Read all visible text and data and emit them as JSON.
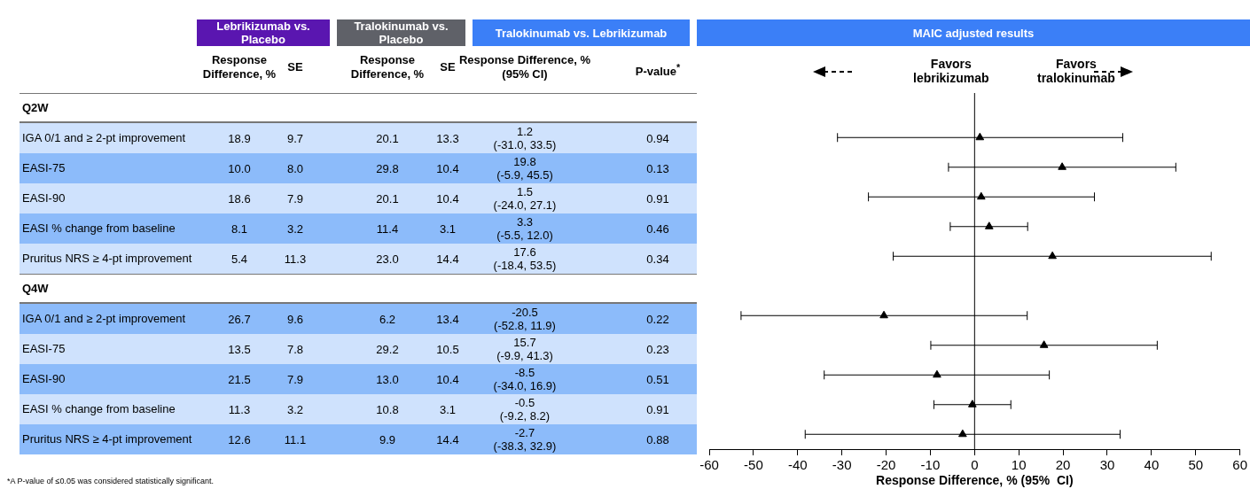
{
  "chart_data": [
    {
      "type": "other",
      "categories": [
        "Q2W",
        "IGA 0/1 and ≥ 2-pt improvement",
        "EASI-75",
        "EASI-90",
        "EASI % change from baseline",
        "Pruritus NRS ≥ 4-pt improvement",
        "Q4W",
        "IGA 0/1 and ≥ 2-pt improvement",
        "EASI-75",
        "EASI-90",
        "EASI % change from baseline",
        "Pruritus NRS ≥ 4-pt improvement"
      ],
      "annotations": [
        "Lebrikizumab vs. Placebo",
        "Tralokinumab vs. Placebo",
        "Tralokinumab vs. Lebrikizumab",
        "*A P-value of ≤0.05 was considered statistically significant."
      ],
      "data_labels": true,
      "series": [
        {
          "name": "Response Difference, %",
          "color": "#000000",
          "values": [
            null,
            18.9,
            10.0,
            18.6,
            8.1,
            5.4,
            null,
            26.7,
            13.5,
            21.5,
            11.3,
            12.6
          ],
          "value_labels": [
            null,
            "18.9",
            "10.0",
            "18.6",
            "8.1",
            "5.4",
            null,
            "26.7",
            "13.5",
            "21.5",
            "11.3",
            "12.6"
          ]
        },
        {
          "name": "SE",
          "color": "#000000",
          "values": [
            null,
            9.7,
            8.0,
            7.9,
            3.2,
            11.3,
            null,
            9.6,
            7.8,
            7.9,
            3.2,
            11.1
          ],
          "value_labels": [
            null,
            "9.7",
            "8.0",
            "7.9",
            "3.2",
            "11.3",
            null,
            "9.6",
            "7.8",
            "7.9",
            "3.2",
            "11.1"
          ]
        },
        {
          "name": "Response Difference, %",
          "color": "#000000",
          "values": [
            null,
            20.1,
            29.8,
            20.1,
            11.4,
            23.0,
            null,
            6.2,
            29.2,
            13.0,
            10.8,
            9.9
          ],
          "value_labels": [
            null,
            "20.1",
            "29.8",
            "20.1",
            "11.4",
            "23.0",
            null,
            "6.2",
            "29.2",
            "13.0",
            "10.8",
            "9.9"
          ]
        },
        {
          "name": "SE",
          "color": "#000000",
          "values": [
            null,
            13.3,
            10.4,
            10.4,
            3.1,
            14.4,
            null,
            13.4,
            10.5,
            10.4,
            3.1,
            14.4
          ],
          "value_labels": [
            null,
            "13.3",
            "10.4",
            "10.4",
            "3.1",
            "14.4",
            null,
            "13.4",
            "10.5",
            "10.4",
            "3.1",
            "14.4"
          ]
        },
        {
          "name": "Response Difference, % (95% CI)",
          "color": "#000000",
          "values": [
            null,
            1.2,
            19.8,
            1.5,
            3.3,
            17.6,
            null,
            -20.5,
            15.7,
            -8.5,
            -0.5,
            -2.7
          ],
          "value_labels": [
            null,
            "1.2\n(-31.0, 33.5)",
            "19.8\n(-5.9, 45.5)",
            "1.5\n(-24.0, 27.1)",
            "3.3\n(-5.5, 12.0)",
            "17.6\n(-18.4, 53.5)",
            null,
            "-20.5\n(-52.8, 11.9)",
            "15.7\n(-9.9, 41.3)",
            "-8.5\n(-34.0, 16.9)",
            "-0.5\n(-9.2, 8.2)",
            "-2.7\n(-38.3, 32.9)"
          ]
        },
        {
          "name": "P-value$^{*}$",
          "color": "#000000",
          "values": [
            null,
            0.94,
            0.13,
            0.91,
            0.46,
            0.34,
            null,
            0.22,
            0.23,
            0.51,
            0.91,
            0.88
          ],
          "value_labels": [
            null,
            "0.94",
            "0.13",
            "0.91",
            "0.46",
            "0.34",
            null,
            "0.22",
            "0.23",
            "0.51",
            "0.91",
            "0.88"
          ]
        }
      ]
    },
    {
      "type": "scatter",
      "title": "MAIC adjusted results",
      "xlabel": "Response Difference, % (95%  CI)",
      "orientation": "horizontal",
      "tick_labels": "x",
      "marker": "triangle",
      "grid": false,
      "categories": [
        null,
        null,
        null,
        null,
        null,
        null,
        null,
        null,
        null,
        null,
        null,
        null
      ],
      "xlim": [
        -60,
        60
      ],
      "xticks": [
        -60,
        -50,
        -40,
        -30,
        -20,
        -10,
        0,
        10,
        20,
        30,
        40,
        50,
        60
      ],
      "ref_lines": [
        {
          "axis": "x",
          "value": 0,
          "color": "#000000"
        }
      ],
      "annotations": [
        "Favors lebrikizumab",
        "Favors tralokinumab"
      ],
      "series": [
        {
          "color": "#000000",
          "values": [
            null,
            1.2,
            19.8,
            1.5,
            3.3,
            17.6,
            null,
            -20.5,
            15.7,
            -8.5,
            -0.5,
            -2.7
          ],
          "errors": [
            null,
            [
              -31.0,
              33.5
            ],
            [
              -5.9,
              45.5
            ],
            [
              -24.0,
              27.1
            ],
            [
              -5.5,
              12.0
            ],
            [
              -18.4,
              53.5
            ],
            null,
            [
              -52.8,
              11.9
            ],
            [
              -9.9,
              41.3
            ],
            [
              -34.0,
              16.9
            ],
            [
              -9.2,
              8.2
            ],
            [
              -38.3,
              32.9
            ]
          ]
        }
      ]
    }
  ]
}
